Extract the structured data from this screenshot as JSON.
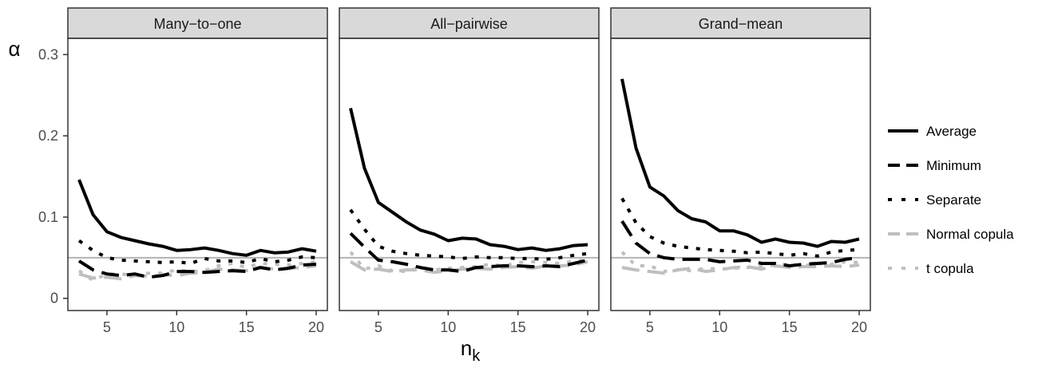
{
  "chart_data": {
    "type": "line",
    "y_axis_label": "α",
    "x_axis_label_base": "n",
    "x_axis_label_sub": "k",
    "xlim": [
      2.2,
      20.8
    ],
    "ylim": [
      -0.015,
      0.32
    ],
    "x_ticks": [
      5,
      10,
      15,
      20
    ],
    "y_ticks": [
      0,
      0.1,
      0.2,
      0.3
    ],
    "y_tick_labels": [
      "0",
      "0.1",
      "0.2",
      "0.3"
    ],
    "reference_line": 0.05,
    "grid": false,
    "legend_position": "right",
    "x": [
      3,
      4,
      5,
      6,
      7,
      8,
      9,
      10,
      11,
      12,
      13,
      14,
      15,
      16,
      17,
      18,
      19,
      20
    ],
    "series_styles": [
      {
        "name": "Average",
        "color": "#000000",
        "dash": "solid"
      },
      {
        "name": "Minimum",
        "color": "#000000",
        "dash": "longdash"
      },
      {
        "name": "Separate",
        "color": "#000000",
        "dash": "dotted"
      },
      {
        "name": "Normal copula",
        "color": "#bfbfbf",
        "dash": "longdash"
      },
      {
        "name": "t copula",
        "color": "#bfbfbf",
        "dash": "dotted"
      }
    ],
    "panels": [
      {
        "title": "Many−to−one",
        "series": [
          {
            "name": "Average",
            "values": [
              0.146,
              0.103,
              0.082,
              0.075,
              0.071,
              0.067,
              0.064,
              0.059,
              0.06,
              0.062,
              0.059,
              0.055,
              0.053,
              0.059,
              0.056,
              0.057,
              0.061,
              0.058
            ]
          },
          {
            "name": "Minimum",
            "values": [
              0.046,
              0.035,
              0.03,
              0.028,
              0.03,
              0.026,
              0.028,
              0.033,
              0.033,
              0.032,
              0.033,
              0.034,
              0.033,
              0.038,
              0.035,
              0.037,
              0.041,
              0.042
            ]
          },
          {
            "name": "Separate",
            "values": [
              0.071,
              0.059,
              0.05,
              0.047,
              0.046,
              0.045,
              0.044,
              0.045,
              0.043,
              0.049,
              0.046,
              0.046,
              0.044,
              0.049,
              0.045,
              0.047,
              0.051,
              0.05
            ]
          },
          {
            "name": "Normal copula",
            "values": [
              0.03,
              0.025,
              0.026,
              0.024,
              0.028,
              0.027,
              0.029,
              0.028,
              0.031,
              0.032,
              0.036,
              0.035,
              0.034,
              0.038,
              0.036,
              0.037,
              0.038,
              0.04
            ]
          },
          {
            "name": "t copula",
            "values": [
              0.034,
              0.022,
              0.03,
              0.03,
              0.028,
              0.031,
              0.031,
              0.035,
              0.033,
              0.034,
              0.04,
              0.043,
              0.038,
              0.043,
              0.042,
              0.041,
              0.043,
              0.045
            ]
          }
        ]
      },
      {
        "title": "All−pairwise",
        "series": [
          {
            "name": "Average",
            "values": [
              0.234,
              0.16,
              0.118,
              0.106,
              0.094,
              0.084,
              0.079,
              0.071,
              0.074,
              0.073,
              0.066,
              0.064,
              0.06,
              0.062,
              0.059,
              0.061,
              0.065,
              0.066
            ]
          },
          {
            "name": "Minimum",
            "values": [
              0.08,
              0.063,
              0.047,
              0.045,
              0.042,
              0.038,
              0.035,
              0.035,
              0.033,
              0.038,
              0.039,
              0.04,
              0.04,
              0.039,
              0.04,
              0.039,
              0.043,
              0.047
            ]
          },
          {
            "name": "Separate",
            "values": [
              0.109,
              0.085,
              0.064,
              0.058,
              0.055,
              0.053,
              0.052,
              0.051,
              0.049,
              0.051,
              0.05,
              0.05,
              0.049,
              0.049,
              0.048,
              0.05,
              0.053,
              0.055
            ]
          },
          {
            "name": "Normal copula",
            "values": [
              0.045,
              0.035,
              0.036,
              0.033,
              0.035,
              0.035,
              0.032,
              0.034,
              0.036,
              0.037,
              0.036,
              0.038,
              0.039,
              0.037,
              0.04,
              0.04,
              0.041,
              0.045
            ]
          },
          {
            "name": "t copula",
            "values": [
              0.057,
              0.036,
              0.04,
              0.034,
              0.033,
              0.038,
              0.035,
              0.037,
              0.038,
              0.039,
              0.042,
              0.04,
              0.044,
              0.045,
              0.044,
              0.043,
              0.046,
              0.047
            ]
          }
        ]
      },
      {
        "title": "Grand−mean",
        "series": [
          {
            "name": "Average",
            "values": [
              0.27,
              0.185,
              0.137,
              0.126,
              0.108,
              0.098,
              0.094,
              0.083,
              0.083,
              0.078,
              0.069,
              0.073,
              0.069,
              0.068,
              0.064,
              0.07,
              0.069,
              0.073
            ]
          },
          {
            "name": "Minimum",
            "values": [
              0.095,
              0.068,
              0.055,
              0.05,
              0.048,
              0.048,
              0.048,
              0.045,
              0.046,
              0.047,
              0.043,
              0.043,
              0.04,
              0.042,
              0.043,
              0.044,
              0.048,
              0.05
            ]
          },
          {
            "name": "Separate",
            "values": [
              0.123,
              0.093,
              0.076,
              0.068,
              0.064,
              0.062,
              0.06,
              0.059,
              0.058,
              0.056,
              0.057,
              0.055,
              0.053,
              0.055,
              0.052,
              0.057,
              0.059,
              0.06
            ]
          },
          {
            "name": "Normal copula",
            "values": [
              0.038,
              0.035,
              0.033,
              0.031,
              0.035,
              0.037,
              0.033,
              0.035,
              0.038,
              0.039,
              0.036,
              0.04,
              0.038,
              0.039,
              0.039,
              0.04,
              0.039,
              0.041
            ]
          },
          {
            "name": "t copula",
            "values": [
              0.057,
              0.04,
              0.04,
              0.033,
              0.035,
              0.034,
              0.037,
              0.036,
              0.037,
              0.038,
              0.039,
              0.041,
              0.042,
              0.04,
              0.043,
              0.042,
              0.045,
              0.044
            ]
          }
        ]
      }
    ]
  }
}
